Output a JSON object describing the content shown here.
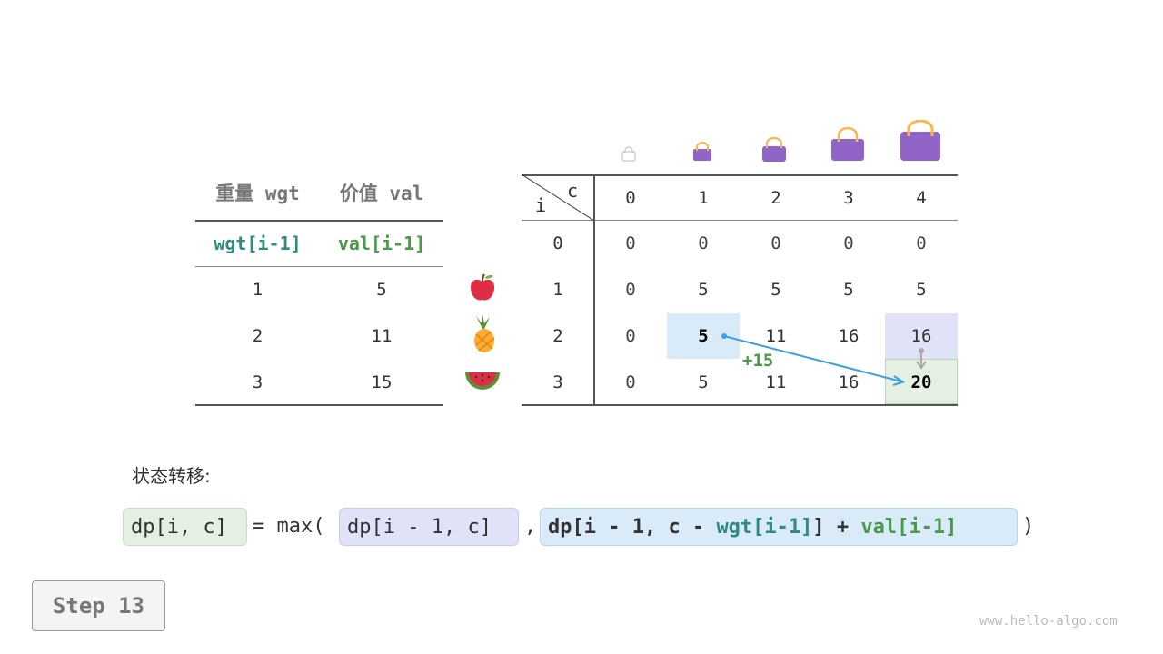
{
  "left_table": {
    "headers": [
      "重量 wgt",
      "价值 val"
    ],
    "subheaders": [
      "wgt[i-1]",
      "val[i-1]"
    ],
    "rows": [
      [
        "1",
        "5"
      ],
      [
        "2",
        "11"
      ],
      [
        "3",
        "15"
      ]
    ]
  },
  "items": [
    {
      "icon": "apple-icon"
    },
    {
      "icon": "pineapple-icon"
    },
    {
      "icon": "watermelon-icon"
    }
  ],
  "dp_table": {
    "corner_col": "c",
    "corner_row": "i",
    "col_headers": [
      "0",
      "1",
      "2",
      "3",
      "4"
    ],
    "row_headers": [
      "0",
      "1",
      "2",
      "3"
    ],
    "rows": [
      [
        "0",
        "0",
        "0",
        "0",
        "0"
      ],
      [
        "0",
        "5",
        "5",
        "5",
        "5"
      ],
      [
        "0",
        "5",
        "11",
        "16",
        "16"
      ],
      [
        "0",
        "5",
        "11",
        "16",
        "20"
      ]
    ],
    "annotation": "+15"
  },
  "label": "状态转移:",
  "formula": {
    "lhs": "dp[i, c]",
    "eq": "=",
    "max": "max(",
    "term1": "dp[i - 1, c]",
    "comma": ",",
    "t2a": "dp[i - 1, c - ",
    "t2wgt": "wgt[i-1]",
    "t2b": "] + ",
    "t2val": "val[i-1]",
    "close": ")"
  },
  "step": "Step 13",
  "watermark": "www.hello-algo.com",
  "colors": {
    "teal": "#2f8a82",
    "green": "#4a9a4a",
    "blue_hl": "#d9eaf9",
    "purple_hl": "#e0e3f7",
    "green_hl": "#e3f0e2",
    "arrow": "#3ea0e4",
    "bag": "#9164c8"
  }
}
